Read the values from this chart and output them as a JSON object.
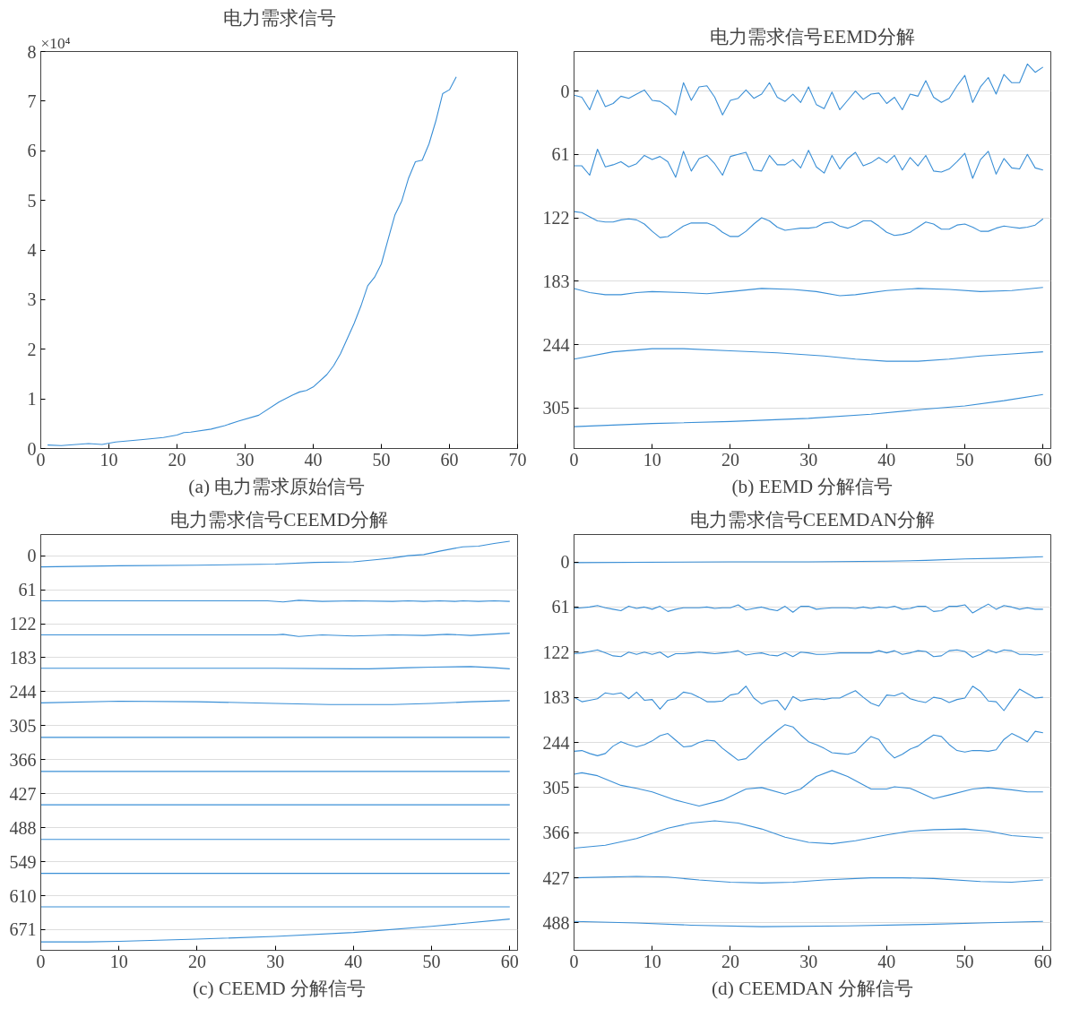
{
  "chart_data": [
    {
      "type": "line",
      "title": "电力需求信号",
      "ylabel": "×10⁴",
      "annotations": [
        "(a)  电力需求原始信号"
      ],
      "xlim": [
        0,
        70
      ],
      "xticks": [
        0,
        10,
        20,
        30,
        40,
        50,
        60,
        70
      ],
      "ylim": [
        0,
        8
      ],
      "yticks": [
        0,
        1,
        2,
        3,
        4,
        5,
        6,
        7,
        8
      ],
      "grid": false,
      "series": [
        {
          "color": "#3a8fd6",
          "x": [
            1,
            3,
            7,
            9,
            11,
            15,
            18,
            20,
            21,
            22,
            25,
            27,
            29,
            32,
            35,
            37,
            38,
            39,
            40,
            42,
            43,
            44,
            46,
            47,
            48,
            49,
            50,
            51,
            52,
            53,
            54,
            55,
            56,
            57,
            58,
            59,
            60,
            61
          ],
          "values": [
            0.07,
            0.06,
            0.1,
            0.08,
            0.13,
            0.18,
            0.22,
            0.27,
            0.32,
            0.33,
            0.39,
            0.46,
            0.55,
            0.67,
            0.94,
            1.08,
            1.14,
            1.17,
            1.24,
            1.49,
            1.67,
            1.91,
            2.52,
            2.87,
            3.28,
            3.45,
            3.72,
            4.22,
            4.71,
            4.99,
            5.45,
            5.78,
            5.81,
            6.14,
            6.6,
            7.15,
            7.23,
            7.49
          ]
        }
      ]
    },
    {
      "type": "line",
      "title": "电力需求信号EEMD分解",
      "annotations": [
        "(b) EEMD 分解信号"
      ],
      "xlim": [
        0,
        61
      ],
      "xticks": [
        0,
        10,
        20,
        30,
        40,
        50,
        60
      ],
      "ylim": [
        344,
        -38
      ],
      "yticks": [
        0,
        61,
        122,
        183,
        244,
        305
      ],
      "grid": "y",
      "series": [
        {
          "color": "#3a8fd6",
          "x": [
            0,
            1,
            2,
            3,
            4,
            5,
            6,
            7,
            8,
            9,
            10,
            11,
            12,
            13,
            14,
            15,
            16,
            17,
            18,
            19,
            20,
            21,
            22,
            23,
            24,
            25,
            26,
            27,
            28,
            29,
            30,
            31,
            32,
            33,
            34,
            35,
            36,
            37,
            38,
            39,
            40,
            41,
            42,
            43,
            44,
            45,
            46,
            47,
            48,
            49,
            50,
            51,
            52,
            53,
            54,
            55,
            56,
            57,
            58,
            59,
            60
          ],
          "values": [
            4,
            6,
            18,
            -1,
            15,
            12,
            5,
            7,
            3,
            -1,
            9,
            10,
            15,
            23,
            -8,
            9,
            -4,
            -5,
            6,
            23,
            9,
            7,
            -1,
            7,
            3,
            -8,
            6,
            10,
            3,
            11,
            -4,
            13,
            17,
            1,
            18,
            9,
            0,
            8,
            3,
            2,
            12,
            6,
            18,
            3,
            5,
            -10,
            6,
            11,
            7,
            -5,
            -15,
            11,
            -4,
            -13,
            3,
            -16,
            -8,
            -8,
            -26,
            -18,
            -23
          ]
        },
        {
          "color": "#3a8fd6",
          "x": [
            0,
            1,
            2,
            3,
            4,
            5,
            6,
            7,
            8,
            9,
            10,
            11,
            12,
            13,
            14,
            15,
            16,
            17,
            18,
            19,
            20,
            21,
            22,
            23,
            24,
            25,
            26,
            27,
            28,
            29,
            30,
            31,
            32,
            33,
            34,
            35,
            36,
            37,
            38,
            39,
            40,
            41,
            42,
            43,
            44,
            45,
            46,
            47,
            48,
            49,
            50,
            51,
            52,
            53,
            54,
            55,
            56,
            57,
            58,
            59,
            60
          ],
          "values": [
            72,
            72,
            81,
            56,
            73,
            71,
            68,
            73,
            70,
            62,
            66,
            63,
            68,
            83,
            58,
            77,
            65,
            62,
            70,
            81,
            63,
            61,
            59,
            76,
            77,
            62,
            71,
            71,
            66,
            74,
            57,
            73,
            79,
            62,
            75,
            65,
            59,
            72,
            69,
            64,
            69,
            62,
            76,
            64,
            72,
            62,
            77,
            78,
            75,
            68,
            60,
            84,
            66,
            58,
            80,
            65,
            74,
            75,
            61,
            74,
            76
          ]
        },
        {
          "color": "#3a8fd6",
          "x": [
            0,
            1,
            2,
            3,
            4,
            5,
            6,
            7,
            8,
            9,
            10,
            11,
            12,
            13,
            14,
            15,
            16,
            17,
            18,
            19,
            20,
            21,
            22,
            23,
            24,
            25,
            26,
            27,
            28,
            29,
            30,
            31,
            32,
            33,
            34,
            35,
            36,
            37,
            38,
            39,
            40,
            41,
            42,
            43,
            44,
            45,
            46,
            47,
            48,
            49,
            50,
            51,
            52,
            53,
            54,
            55,
            56,
            57,
            58,
            59,
            60
          ],
          "values": [
            116,
            117,
            121,
            125,
            126,
            126,
            124,
            123,
            124,
            128,
            135,
            141,
            140,
            135,
            130,
            127,
            127,
            127,
            130,
            136,
            140,
            140,
            135,
            128,
            122,
            125,
            131,
            134,
            133,
            132,
            132,
            131,
            127,
            126,
            130,
            132,
            129,
            125,
            125,
            130,
            136,
            139,
            138,
            136,
            131,
            126,
            128,
            133,
            133,
            129,
            128,
            131,
            135,
            135,
            132,
            130,
            131,
            132,
            131,
            129,
            123
          ]
        },
        {
          "color": "#3a8fd6",
          "x": [
            0,
            2,
            4,
            6,
            8,
            10,
            14,
            17,
            20,
            24,
            28,
            31,
            34,
            36,
            40,
            44,
            48,
            52,
            56,
            60
          ],
          "values": [
            190,
            194,
            196,
            196,
            194,
            193,
            194,
            195,
            193,
            190,
            191,
            193,
            197,
            196,
            192,
            190,
            191,
            193,
            192,
            189
          ]
        },
        {
          "color": "#3a8fd6",
          "x": [
            0,
            5,
            10,
            14,
            20,
            26,
            32,
            36,
            40,
            44,
            48,
            52,
            56,
            60
          ],
          "values": [
            258,
            251,
            248,
            248,
            250,
            252,
            255,
            258,
            260,
            260,
            258,
            255,
            253,
            251
          ]
        },
        {
          "color": "#3a8fd6",
          "x": [
            0,
            10,
            20,
            30,
            38,
            45,
            50,
            55,
            60
          ],
          "values": [
            323,
            320,
            318,
            315,
            311,
            306,
            303,
            298,
            292
          ]
        }
      ]
    },
    {
      "type": "line",
      "title": "电力需求信号CEEMD分解",
      "annotations": [
        "(c) CEEMD 分解信号"
      ],
      "xlim": [
        0,
        61
      ],
      "xticks": [
        0,
        10,
        20,
        30,
        40,
        50,
        60
      ],
      "ylim": [
        708,
        -38
      ],
      "yticks": [
        0,
        61,
        122,
        183,
        244,
        305,
        366,
        427,
        488,
        549,
        610,
        671
      ],
      "grid": "y",
      "series": [
        {
          "color": "#3a8fd6",
          "x": [
            0,
            10,
            20,
            30,
            35,
            40,
            43,
            45,
            47,
            49,
            51,
            54,
            56,
            58,
            60
          ],
          "values": [
            20,
            18,
            17,
            15,
            12,
            11,
            7,
            4,
            0,
            -2,
            -8,
            -16,
            -17,
            -22,
            -26
          ]
        },
        {
          "color": "#3a8fd6",
          "x": [
            0,
            20,
            29,
            31,
            33,
            36,
            40,
            45,
            47,
            49,
            51,
            53,
            54,
            56,
            58,
            60
          ],
          "values": [
            81,
            81,
            81,
            83,
            80,
            82,
            81,
            82,
            81,
            82,
            81,
            82,
            81,
            82,
            81,
            82
          ]
        },
        {
          "color": "#3a8fd6",
          "x": [
            0,
            30,
            31,
            33,
            36,
            40,
            45,
            49,
            52,
            55,
            60
          ],
          "values": [
            142,
            142,
            141,
            145,
            142,
            144,
            142,
            143,
            141,
            143,
            139
          ]
        },
        {
          "color": "#3a8fd6",
          "x": [
            0,
            20,
            30,
            40,
            42,
            47,
            50,
            55,
            58,
            60
          ],
          "values": [
            202,
            202,
            202,
            203,
            203,
            201,
            200,
            199,
            201,
            203
          ]
        },
        {
          "color": "#3a8fd6",
          "x": [
            0,
            10,
            20,
            30,
            37,
            45,
            50,
            55,
            60
          ],
          "values": [
            264,
            261,
            262,
            265,
            267,
            267,
            265,
            262,
            260
          ]
        },
        {
          "color": "#3a8fd6",
          "x": [
            0,
            30,
            60
          ],
          "values": [
            326,
            326,
            326
          ]
        },
        {
          "color": "#3a8fd6",
          "x": [
            0,
            30,
            60
          ],
          "values": [
            387,
            387,
            387
          ]
        },
        {
          "color": "#3a8fd6",
          "x": [
            0,
            30,
            60
          ],
          "values": [
            447,
            447,
            447
          ]
        },
        {
          "color": "#3a8fd6",
          "x": [
            0,
            30,
            60
          ],
          "values": [
            509,
            509,
            509
          ]
        },
        {
          "color": "#3a8fd6",
          "x": [
            0,
            30,
            60
          ],
          "values": [
            570,
            570,
            570
          ]
        },
        {
          "color": "#3a8fd6",
          "x": [
            0,
            30,
            60
          ],
          "values": [
            630,
            630,
            630
          ]
        },
        {
          "color": "#3a8fd6",
          "x": [
            0,
            6,
            10,
            20,
            30,
            40,
            50,
            60
          ],
          "values": [
            693,
            693,
            692,
            688,
            683,
            676,
            665,
            652
          ]
        }
      ]
    },
    {
      "type": "line",
      "title": "电力需求信号CEEMDAN分解",
      "annotations": [
        "(d) CEEMDAN 分解信号"
      ],
      "xlim": [
        0,
        61
      ],
      "xticks": [
        0,
        10,
        20,
        30,
        40,
        50,
        60
      ],
      "ylim": [
        525,
        -37
      ],
      "yticks": [
        0,
        61,
        122,
        183,
        244,
        305,
        366,
        427,
        488
      ],
      "grid": "y",
      "series": [
        {
          "color": "#3a8fd6",
          "x": [
            0,
            20,
            30,
            40,
            45,
            50,
            55,
            60
          ],
          "values": [
            1,
            0,
            0,
            -1,
            -2,
            -4,
            -5,
            -7
          ]
        },
        {
          "color": "#3a8fd6",
          "x": [
            0,
            1,
            2,
            3,
            4,
            5,
            6,
            7,
            8,
            9,
            10,
            11,
            12,
            13,
            14,
            15,
            16,
            17,
            18,
            19,
            20,
            21,
            22,
            23,
            24,
            25,
            26,
            27,
            28,
            29,
            30,
            31,
            32,
            33,
            34,
            35,
            36,
            37,
            38,
            39,
            40,
            41,
            42,
            43,
            44,
            45,
            46,
            47,
            48,
            49,
            50,
            51,
            52,
            53,
            54,
            55,
            56,
            57,
            58,
            59,
            60
          ],
          "values": [
            63,
            62,
            61,
            59,
            62,
            64,
            66,
            60,
            63,
            61,
            64,
            60,
            67,
            64,
            62,
            62,
            62,
            61,
            63,
            62,
            62,
            58,
            65,
            63,
            61,
            64,
            66,
            60,
            68,
            60,
            60,
            64,
            63,
            62,
            62,
            62,
            63,
            61,
            63,
            61,
            62,
            60,
            64,
            63,
            60,
            60,
            67,
            66,
            60,
            60,
            58,
            69,
            63,
            57,
            64,
            59,
            61,
            64,
            62,
            64,
            64
          ]
        },
        {
          "color": "#3a8fd6",
          "x": [
            0,
            1,
            2,
            3,
            4,
            5,
            6,
            7,
            8,
            9,
            10,
            11,
            12,
            13,
            14,
            15,
            16,
            17,
            18,
            19,
            20,
            21,
            22,
            23,
            24,
            25,
            26,
            27,
            28,
            29,
            30,
            31,
            32,
            33,
            34,
            35,
            36,
            37,
            38,
            39,
            40,
            41,
            42,
            43,
            44,
            45,
            46,
            47,
            48,
            49,
            50,
            51,
            52,
            53,
            54,
            55,
            56,
            57,
            58,
            59,
            60
          ],
          "values": [
            124,
            123,
            121,
            119,
            123,
            127,
            128,
            122,
            125,
            122,
            125,
            122,
            129,
            124,
            124,
            123,
            122,
            123,
            124,
            123,
            122,
            120,
            126,
            124,
            123,
            126,
            127,
            123,
            128,
            122,
            123,
            125,
            125,
            124,
            123,
            123,
            123,
            123,
            123,
            120,
            123,
            120,
            125,
            123,
            120,
            121,
            128,
            127,
            120,
            119,
            121,
            129,
            125,
            119,
            123,
            119,
            120,
            125,
            125,
            126,
            125
          ]
        },
        {
          "color": "#3a8fd6",
          "x": [
            0,
            1,
            2,
            3,
            4,
            5,
            6,
            7,
            8,
            9,
            10,
            11,
            12,
            13,
            14,
            15,
            16,
            17,
            18,
            19,
            20,
            21,
            22,
            23,
            24,
            25,
            26,
            27,
            28,
            29,
            30,
            31,
            32,
            33,
            34,
            35,
            36,
            37,
            38,
            39,
            40,
            41,
            42,
            43,
            44,
            45,
            46,
            47,
            48,
            49,
            50,
            51,
            52,
            53,
            54,
            55,
            56,
            57,
            58,
            59,
            60
          ],
          "values": [
            183,
            189,
            187,
            185,
            177,
            179,
            177,
            185,
            176,
            187,
            186,
            199,
            187,
            185,
            176,
            178,
            183,
            189,
            189,
            188,
            180,
            178,
            168,
            184,
            192,
            188,
            187,
            200,
            182,
            188,
            186,
            185,
            186,
            184,
            184,
            179,
            174,
            183,
            191,
            195,
            180,
            181,
            177,
            185,
            188,
            190,
            183,
            185,
            190,
            186,
            184,
            168,
            175,
            188,
            189,
            201,
            186,
            172,
            178,
            184,
            183
          ]
        },
        {
          "color": "#3a8fd6",
          "x": [
            0,
            1,
            2,
            3,
            4,
            5,
            6,
            7,
            8,
            9,
            10,
            11,
            12,
            13,
            14,
            15,
            16,
            17,
            18,
            19,
            20,
            21,
            22,
            23,
            24,
            25,
            26,
            27,
            28,
            29,
            30,
            31,
            32,
            33,
            34,
            35,
            36,
            37,
            38,
            39,
            40,
            41,
            42,
            43,
            44,
            45,
            46,
            47,
            48,
            49,
            50,
            51,
            52,
            53,
            54,
            55,
            56,
            57,
            58,
            59,
            60
          ],
          "values": [
            256,
            255,
            259,
            262,
            259,
            249,
            243,
            247,
            250,
            247,
            242,
            235,
            232,
            241,
            250,
            249,
            244,
            241,
            242,
            252,
            260,
            268,
            266,
            256,
            246,
            237,
            228,
            220,
            223,
            234,
            243,
            247,
            252,
            258,
            259,
            260,
            257,
            246,
            236,
            240,
            255,
            265,
            260,
            253,
            249,
            241,
            234,
            236,
            247,
            255,
            257,
            255,
            255,
            256,
            254,
            240,
            232,
            237,
            243,
            229,
            231
          ]
        },
        {
          "color": "#3a8fd6",
          "x": [
            0,
            1,
            3,
            6,
            8,
            10,
            13,
            16,
            19,
            22,
            24,
            27,
            29,
            31,
            33,
            35,
            38,
            40,
            41,
            43,
            46,
            48,
            51,
            53,
            56,
            58,
            60
          ],
          "values": [
            287,
            285,
            289,
            302,
            306,
            311,
            322,
            330,
            322,
            307,
            305,
            314,
            307,
            290,
            282,
            290,
            307,
            307,
            304,
            306,
            320,
            315,
            307,
            305,
            308,
            311,
            311
          ]
        },
        {
          "color": "#3a8fd6",
          "x": [
            0,
            4,
            8,
            12,
            15,
            18,
            21,
            24,
            27,
            30,
            33,
            36,
            40,
            43,
            46,
            50,
            53,
            56,
            60
          ],
          "values": [
            387,
            383,
            374,
            360,
            353,
            350,
            353,
            361,
            372,
            379,
            381,
            377,
            369,
            364,
            362,
            361,
            364,
            370,
            373
          ]
        },
        {
          "color": "#3a8fd6",
          "x": [
            0,
            8,
            12,
            16,
            20,
            24,
            28,
            32,
            38,
            42,
            46,
            52,
            56,
            60
          ],
          "values": [
            427,
            425,
            426,
            430,
            433,
            434,
            433,
            430,
            427,
            427,
            428,
            432,
            433,
            430
          ]
        },
        {
          "color": "#3a8fd6",
          "x": [
            0,
            8,
            15,
            24,
            35,
            45,
            52,
            60
          ],
          "values": [
            486,
            488,
            491,
            493,
            492,
            490,
            488,
            486
          ]
        }
      ]
    }
  ]
}
